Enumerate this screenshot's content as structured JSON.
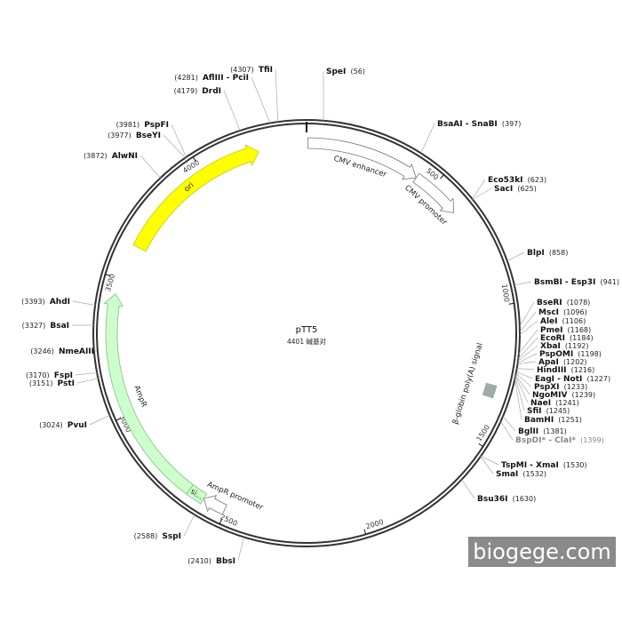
{
  "map": {
    "name": "pTT5",
    "length": 4401,
    "length_label": "4401 碱基对",
    "tick_labels": [
      500,
      1000,
      1500,
      2000,
      2500,
      3000,
      3500,
      4000
    ]
  },
  "features": [
    {
      "name": "CMV enhancer",
      "start": 5,
      "end": 430,
      "color": "#ffffff",
      "direction": "forward"
    },
    {
      "name": "CMV promoter",
      "start": 430,
      "end": 620,
      "color": "#ffffff",
      "direction": "forward"
    },
    {
      "name": "β-globin poly(A) signal",
      "start": 1290,
      "end": 1335,
      "color": "#a0a8b0",
      "direction": "none"
    },
    {
      "name": "AmpR promoter",
      "start": 2505,
      "end": 2590,
      "color": "#ffffff",
      "direction": "forward"
    },
    {
      "name": "si...",
      "start": 2590,
      "end": 2650,
      "color": "#ccffcc",
      "direction": "none"
    },
    {
      "name": "AmpR",
      "start": 2650,
      "end": 3443,
      "color": "#ccffcc",
      "direction": "forward"
    },
    {
      "name": "ori",
      "start": 3631,
      "end": 4221,
      "color": "#ffff00",
      "direction": "forward"
    }
  ],
  "sites": [
    {
      "name": "SpeI",
      "pos": 56
    },
    {
      "name": "BsaAI - SnaBI",
      "pos": 397
    },
    {
      "name": "Eco53kI",
      "pos": 623
    },
    {
      "name": "SacI",
      "pos": 625
    },
    {
      "name": "BlpI",
      "pos": 858
    },
    {
      "name": "BsmBI - Esp3I",
      "pos": 941
    },
    {
      "name": "BseRI",
      "pos": 1078
    },
    {
      "name": "MscI",
      "pos": 1096
    },
    {
      "name": "AleI",
      "pos": 1106
    },
    {
      "name": "PmeI",
      "pos": 1168
    },
    {
      "name": "EcoRI",
      "pos": 1184
    },
    {
      "name": "XbaI",
      "pos": 1192
    },
    {
      "name": "PspOMI",
      "pos": 1198
    },
    {
      "name": "ApaI",
      "pos": 1202
    },
    {
      "name": "HindIII",
      "pos": 1216
    },
    {
      "name": "EagI - NotI",
      "pos": 1227
    },
    {
      "name": "PspXI",
      "pos": 1233
    },
    {
      "name": "NgoMIV",
      "pos": 1239
    },
    {
      "name": "NaeI",
      "pos": 1241
    },
    {
      "name": "SfiI",
      "pos": 1245
    },
    {
      "name": "BamHI",
      "pos": 1251
    },
    {
      "name": "BglII",
      "pos": 1381
    },
    {
      "name": "BspDI* - ClaI*",
      "pos": 1399,
      "blocked": true
    },
    {
      "name": "TspMI - XmaI",
      "pos": 1530
    },
    {
      "name": "SmaI",
      "pos": 1532
    },
    {
      "name": "Bsu36I",
      "pos": 1630
    },
    {
      "name": "BbsI",
      "pos": 2410
    },
    {
      "name": "SspI",
      "pos": 2588
    },
    {
      "name": "PvuI",
      "pos": 3024
    },
    {
      "name": "PstI",
      "pos": 3151
    },
    {
      "name": "FspI",
      "pos": 3170
    },
    {
      "name": "NmeAIII",
      "pos": 3246
    },
    {
      "name": "BsaI",
      "pos": 3327
    },
    {
      "name": "AhdI",
      "pos": 3393
    },
    {
      "name": "AlwNI",
      "pos": 3872
    },
    {
      "name": "BseYI",
      "pos": 3977
    },
    {
      "name": "PspFI",
      "pos": 3981
    },
    {
      "name": "DrdI",
      "pos": 4179
    },
    {
      "name": "AflIII - PciI",
      "pos": 4281
    },
    {
      "name": "TfiI",
      "pos": 4307
    }
  ],
  "colors": {
    "backbone": "#333333",
    "blocked_site": "#888888",
    "watermark_bg": "#8a8a8a"
  },
  "watermark": "biogege.com"
}
